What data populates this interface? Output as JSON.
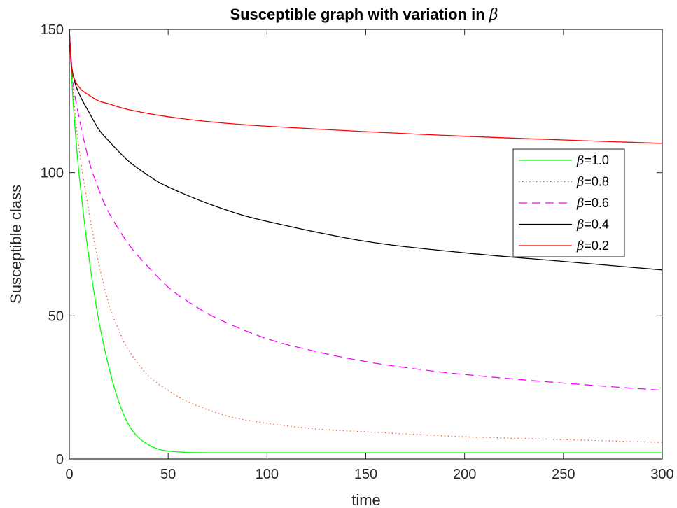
{
  "chart_data": {
    "type": "line",
    "title": "Susceptible graph with variation in ",
    "title_symbol": "β",
    "xlabel": "time",
    "ylabel": "Susceptible class",
    "xlim": [
      0,
      300
    ],
    "ylim": [
      0,
      150
    ],
    "xticks": [
      0,
      50,
      100,
      150,
      200,
      250,
      300
    ],
    "yticks": [
      0,
      50,
      100,
      150
    ],
    "grid": false,
    "legend_position": "top-right",
    "legend_symbol": "β",
    "series": [
      {
        "name": "=1.0",
        "color": "#00ff00",
        "style": "solid",
        "x": [
          0,
          2,
          5,
          10,
          15,
          20,
          25,
          30,
          35,
          40,
          45,
          50,
          60,
          70,
          100,
          150,
          200,
          250,
          300
        ],
        "y": [
          150,
          124,
          99,
          70,
          48,
          32,
          20,
          12,
          7.5,
          5,
          3.5,
          2.8,
          2.3,
          2.2,
          2.2,
          2.2,
          2.2,
          2.2,
          2.2
        ]
      },
      {
        "name": "=0.8",
        "color": "#e8603a",
        "style": "dotted",
        "x": [
          0,
          2,
          5,
          10,
          15,
          20,
          25,
          30,
          40,
          50,
          60,
          80,
          100,
          125,
          150,
          200,
          250,
          300
        ],
        "y": [
          150,
          128,
          108,
          86,
          68,
          54,
          45,
          38,
          29,
          24,
          20,
          15,
          12.5,
          10.5,
          9.5,
          7.8,
          6.8,
          5.8
        ]
      },
      {
        "name": "=0.6",
        "color": "#ff00ff",
        "style": "dashed",
        "x": [
          0,
          2,
          5,
          10,
          15,
          20,
          30,
          40,
          50,
          60,
          75,
          100,
          125,
          150,
          175,
          200,
          250,
          300
        ],
        "y": [
          150,
          131,
          119,
          104,
          94,
          86,
          75,
          67,
          60,
          55,
          49,
          42,
          37.5,
          34,
          31.5,
          29.5,
          26.5,
          24
        ]
      },
      {
        "name": "=0.4",
        "color": "#000000",
        "style": "solid",
        "x": [
          0,
          1,
          3,
          6,
          10,
          15,
          20,
          30,
          40,
          50,
          75,
          100,
          150,
          200,
          250,
          300
        ],
        "y": [
          150,
          138,
          131,
          126,
          121,
          115,
          111,
          104,
          99,
          95,
          88,
          83,
          76,
          72,
          69,
          66
        ]
      },
      {
        "name": "=0.2",
        "color": "#ff0000",
        "style": "solid",
        "x": [
          0,
          1,
          3,
          6,
          10,
          15,
          20,
          30,
          50,
          75,
          100,
          150,
          200,
          250,
          300
        ],
        "y": [
          150,
          137,
          132,
          129,
          127,
          125,
          124,
          122,
          119.5,
          117.5,
          116.2,
          114.3,
          112.7,
          111.4,
          110.2
        ]
      }
    ]
  }
}
